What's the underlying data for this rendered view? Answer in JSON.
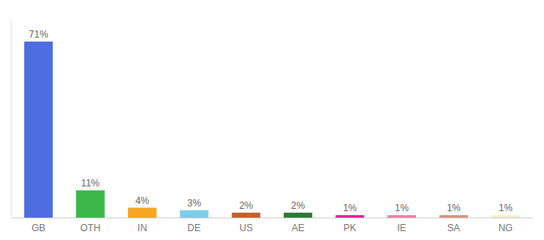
{
  "chart_data": {
    "type": "bar",
    "categories": [
      "GB",
      "OTH",
      "IN",
      "DE",
      "US",
      "AE",
      "PK",
      "IE",
      "SA",
      "NG"
    ],
    "values": [
      71,
      11,
      4,
      3,
      2,
      2,
      1,
      1,
      1,
      1
    ],
    "value_labels": [
      "71%",
      "11%",
      "4%",
      "3%",
      "2%",
      "2%",
      "1%",
      "1%",
      "1%",
      "1%"
    ],
    "colors": [
      "#4d6de0",
      "#3cb84a",
      "#f5a623",
      "#7ecde8",
      "#c0622a",
      "#2d7a32",
      "#f01890",
      "#f080a0",
      "#d89080",
      "#f0f0d0"
    ],
    "ylim": [
      0,
      80
    ],
    "data_labels": true,
    "tick_labels": "x"
  }
}
